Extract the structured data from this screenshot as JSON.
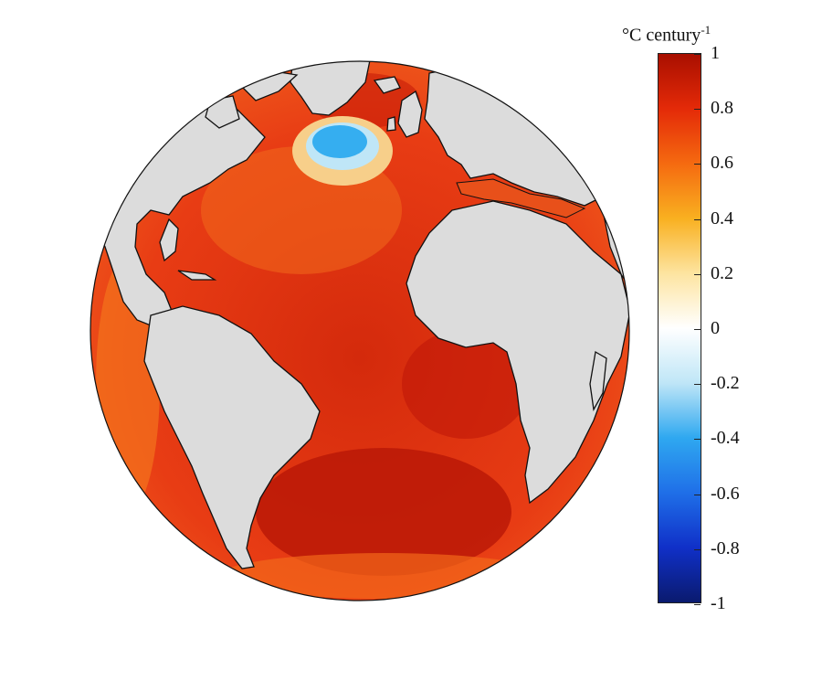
{
  "colorbar": {
    "units": "°C century",
    "units_exponent": "-1",
    "ticks": [
      "1",
      "0.8",
      "0.6",
      "0.4",
      "0.2",
      "0",
      "-0.2",
      "-0.4",
      "-0.6",
      "-0.8",
      "-1"
    ],
    "range": [
      -1,
      1
    ],
    "colors": [
      "#0a1a6e",
      "#1030c8",
      "#1f6fe8",
      "#2fa8f0",
      "#bfe6f7",
      "#ffffff",
      "#fde4a0",
      "#f9b020",
      "#f56a10",
      "#e42a08",
      "#a80f00"
    ]
  },
  "map": {
    "projection": "orthographic",
    "view": "Atlantic Ocean",
    "land_color": "#dcdcdc",
    "ocean_base_color": "#e33a12"
  }
}
